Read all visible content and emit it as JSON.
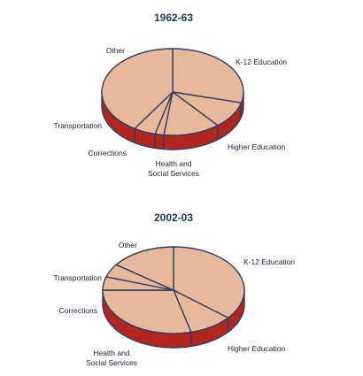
{
  "chart_data": [
    {
      "type": "pie",
      "title": "1962-63",
      "colors": {
        "top": "#e8b89a",
        "side": "#b3261e",
        "edge": "#2b3f66"
      },
      "slices": [
        {
          "label": "K-12 Education",
          "value": 29
        },
        {
          "label": "Higher Education",
          "value": 10
        },
        {
          "label": "Health and Social Services",
          "value": 13
        },
        {
          "label": "Corrections",
          "value": 2
        },
        {
          "label": "Transportation",
          "value": 5
        },
        {
          "label": "Other",
          "value": 41
        }
      ]
    },
    {
      "type": "pie",
      "title": "2002-03",
      "colors": {
        "top": "#e8b89a",
        "side": "#b3261e",
        "edge": "#2b3f66"
      },
      "slices": [
        {
          "label": "K-12 Education",
          "value": 36
        },
        {
          "label": "Higher Education",
          "value": 10
        },
        {
          "label": "Health and Social Services",
          "value": 29
        },
        {
          "label": "Corrections",
          "value": 5
        },
        {
          "label": "Transportation",
          "value": 5
        },
        {
          "label": "Other",
          "value": 15
        }
      ]
    }
  ]
}
